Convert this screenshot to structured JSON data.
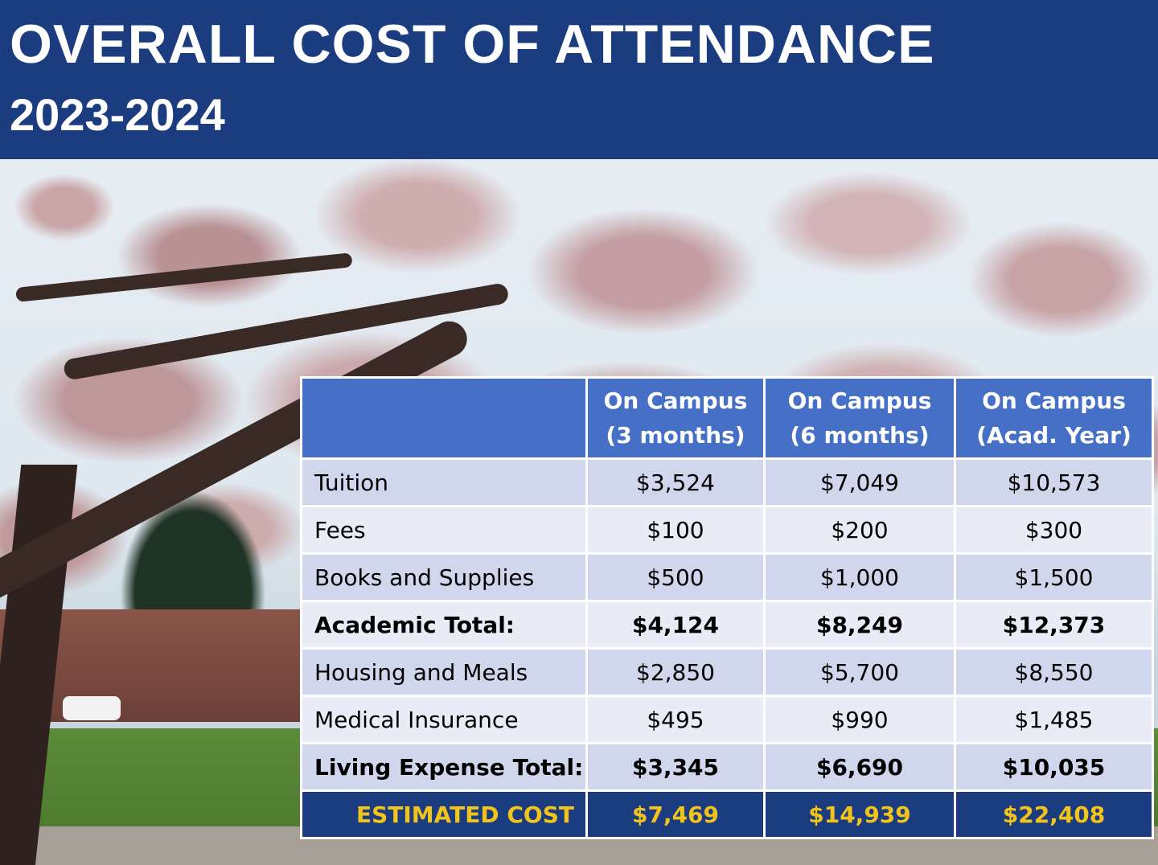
{
  "banner": {
    "title": "OVERALL COST OF ATTENDANCE",
    "subtitle": "2023-2024"
  },
  "photo": {
    "alt": "Cherry blossom tree on campus"
  },
  "table": {
    "columns": [
      {
        "line1": "",
        "line2": ""
      },
      {
        "line1": "On Campus",
        "line2": "(3 months)"
      },
      {
        "line1": "On Campus",
        "line2": "(6 months)"
      },
      {
        "line1": "On Campus",
        "line2": "(Acad. Year)"
      }
    ],
    "rows": [
      {
        "label": "Tuition",
        "values": [
          "$3,524",
          "$7,049",
          "$10,573"
        ]
      },
      {
        "label": "Fees",
        "values": [
          "$100",
          "$200",
          "$300"
        ]
      },
      {
        "label": "Books and Supplies",
        "values": [
          "$500",
          "$1,000",
          "$1,500"
        ]
      },
      {
        "label": "Academic Total:",
        "values": [
          "$4,124",
          "$8,249",
          "$12,373"
        ]
      },
      {
        "label": "Housing and Meals",
        "values": [
          "$2,850",
          "$5,700",
          "$8,550"
        ]
      },
      {
        "label": "Medical Insurance",
        "values": [
          "$495",
          "$990",
          "$1,485"
        ]
      },
      {
        "label": "Living Expense Total:",
        "values": [
          "$3,345",
          "$6,690",
          "$10,035"
        ]
      },
      {
        "label": "ESTIMATED COST",
        "values": [
          "$7,469",
          "$14,939",
          "$22,408"
        ]
      }
    ]
  },
  "colors": {
    "banner_bg": "#1b3d80",
    "header_bg": "#4670c6",
    "row_a_bg": "#d0d6ec",
    "row_b_bg": "#e9ecf6",
    "estimate_bg": "#1b3d80",
    "estimate_text": "#f2c31a"
  }
}
